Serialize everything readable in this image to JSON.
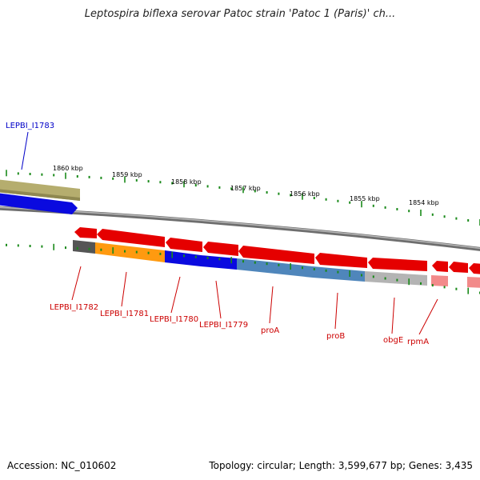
{
  "title": "Leptospira biflexa serovar Patoc strain 'Patoc 1 (Paris)' ch...",
  "footer": {
    "accession": "Accession: NC_010602",
    "topology": "Topology: circular; Length: 3,599,677 bp; Genes: 3,435"
  },
  "colors": {
    "forward_label": "#0000c8",
    "reverse_label": "#cc0000",
    "tick": "#1a8a1a",
    "backbone": "#8c8c8c",
    "cds_red": "#e50000",
    "gene_orange": "#ff9a10",
    "gene_blue": "#0a0adf",
    "gene_steel": "#4f86bb",
    "gene_gray": "#b4b4b4",
    "gene_dark": "#555555",
    "gene_olive": "#b5ad6e",
    "gene_pink": "#f28a8a"
  },
  "scale": {
    "labels": [
      "1860 kbp",
      "1859 kbp",
      "1858 kbp",
      "1857 kbp",
      "1856 kbp",
      "1855 kbp",
      "1854 kbp"
    ]
  },
  "forward_track": {
    "features": [
      {
        "name": "LEPBI_I1783",
        "color": "gene_olive",
        "label": "LEPBI_I1783"
      },
      {
        "name": "blue-cds",
        "color": "gene_blue",
        "label": ""
      }
    ]
  },
  "reverse_track": {
    "features": [
      {
        "name": "LEPBI_I1782",
        "color": "gene_dark",
        "label": "LEPBI_I1782"
      },
      {
        "name": "LEPBI_I1781",
        "color": "gene_orange",
        "label": "LEPBI_I1781"
      },
      {
        "name": "LEPBI_I1780",
        "color": "gene_blue",
        "label": "LEPBI_I1780"
      },
      {
        "name": "LEPBI_I1779",
        "color": "gene_blue",
        "label": "LEPBI_I1779"
      },
      {
        "name": "proA",
        "color": "gene_steel",
        "label": "proA"
      },
      {
        "name": "proB",
        "color": "gene_steel",
        "label": "proB"
      },
      {
        "name": "obgE",
        "color": "gene_gray",
        "label": "obgE"
      },
      {
        "name": "rpmA",
        "color": "gene_pink",
        "label": "rpmA"
      }
    ]
  },
  "reverse_cds_count": 11
}
